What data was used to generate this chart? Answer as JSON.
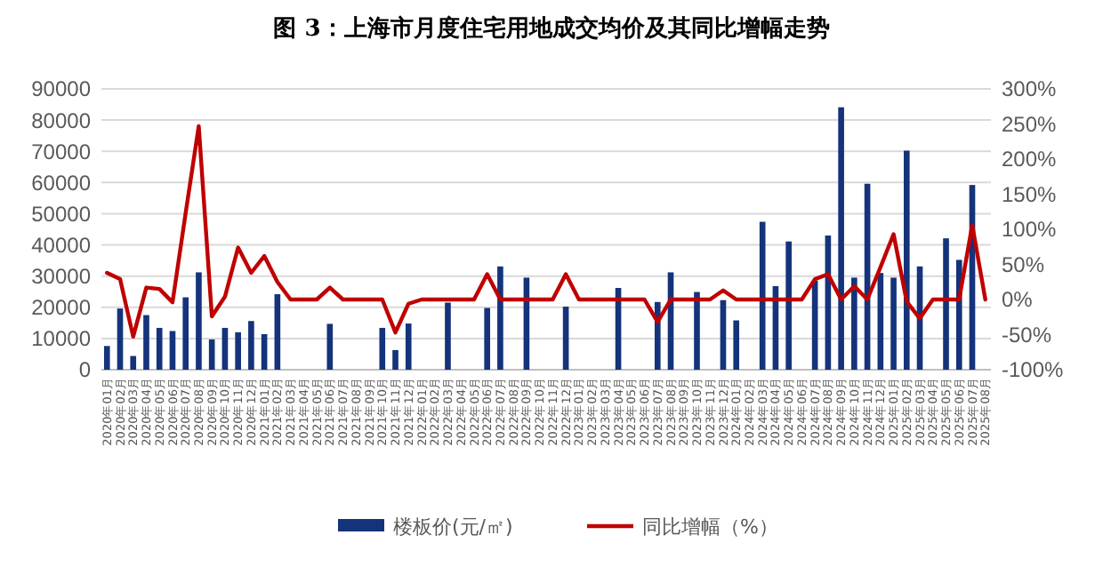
{
  "chart_data": {
    "type": "bar",
    "title": "图 3：上海市月度住宅用地成交均价及其同比增幅走势",
    "categories": [
      "2020年01月",
      "2020年02月",
      "2020年03月",
      "2020年04月",
      "2020年05月",
      "2020年06月",
      "2020年07月",
      "2020年08月",
      "2020年09月",
      "2020年10月",
      "2020年11月",
      "2020年12月",
      "2021年01月",
      "2021年02月",
      "2021年03月",
      "2021年04月",
      "2021年05月",
      "2021年06月",
      "2021年07月",
      "2021年08月",
      "2021年09月",
      "2021年10月",
      "2021年11月",
      "2021年12月",
      "2022年01月",
      "2022年02月",
      "2022年03月",
      "2022年04月",
      "2022年05月",
      "2022年06月",
      "2022年07月",
      "2022年08月",
      "2022年09月",
      "2022年10月",
      "2022年11月",
      "2022年12月",
      "2023年01月",
      "2023年02月",
      "2023年03月",
      "2023年04月",
      "2023年05月",
      "2023年06月",
      "2023年07月",
      "2023年08月",
      "2023年09月",
      "2023年10月",
      "2023年11月",
      "2023年12月",
      "2024年01月",
      "2024年02月",
      "2024年03月",
      "2024年04月",
      "2024年05月",
      "2024年06月",
      "2024年07月",
      "2024年08月",
      "2024年09月",
      "2024年10月",
      "2024年11月",
      "2024年12月",
      "2025年01月",
      "2025年02月",
      "2025年03月",
      "2025年04月",
      "2025年05月",
      "2025年06月",
      "2025年07月",
      "2025年08月"
    ],
    "series": [
      {
        "name": "楼板价(元/㎡)",
        "color": "#14337a",
        "values": [
          7600,
          19600,
          4400,
          17500,
          13400,
          12400,
          23200,
          31200,
          9700,
          13400,
          12000,
          15600,
          11400,
          24200,
          null,
          null,
          null,
          14700,
          null,
          null,
          null,
          13400,
          6300,
          14800,
          null,
          null,
          21500,
          null,
          null,
          19800,
          33100,
          null,
          29500,
          null,
          null,
          20200,
          null,
          null,
          null,
          26200,
          null,
          null,
          21700,
          31200,
          null,
          24900,
          null,
          22300,
          15800,
          null,
          47400,
          26800,
          41100,
          null,
          28500,
          43000,
          84100,
          29500,
          59600,
          31000,
          29500,
          70200,
          33100,
          null,
          42100,
          35200,
          59200,
          null
        ]
      },
      {
        "name": "同比增幅（%）",
        "type": "line",
        "axis": "y2",
        "color": "#c00000",
        "values": [
          38,
          29,
          -53,
          17,
          15,
          -4,
          123,
          247,
          -24,
          4,
          74,
          38,
          62,
          25,
          0,
          0,
          0,
          17,
          0,
          0,
          0,
          0,
          -47,
          -6,
          0,
          0,
          0,
          0,
          0,
          36,
          0,
          0,
          0,
          0,
          0,
          36,
          0,
          0,
          0,
          0,
          0,
          0,
          -32,
          0,
          0,
          0,
          0,
          13,
          0,
          0,
          0,
          0,
          0,
          0,
          29,
          36,
          0,
          19,
          0,
          46,
          93,
          -3,
          -27,
          0,
          0,
          0,
          106,
          0
        ]
      }
    ],
    "ylim": [
      0,
      90000
    ],
    "yticks": [
      0,
      10000,
      20000,
      30000,
      40000,
      50000,
      60000,
      70000,
      80000,
      90000
    ],
    "y2lim": [
      -100,
      300
    ],
    "y2ticks": [
      {
        "value": -100,
        "label": "-100%"
      },
      {
        "value": -50,
        "label": "-50%"
      },
      {
        "value": 0,
        "label": "0%"
      },
      {
        "value": 50,
        "label": "50%"
      },
      {
        "value": 100,
        "label": "100%"
      },
      {
        "value": 150,
        "label": "150%"
      },
      {
        "value": 200,
        "label": "200%"
      },
      {
        "value": 250,
        "label": "250%"
      },
      {
        "value": 300,
        "label": "300%"
      }
    ],
    "grid": "y",
    "legend": "bottom"
  }
}
